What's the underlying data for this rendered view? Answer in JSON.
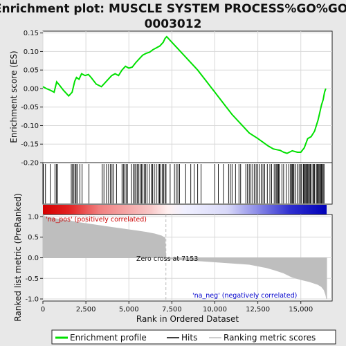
{
  "title_line1": "Enrichment plot: MUSCLE SYSTEM PROCESS%GO%GO:",
  "title_line2": "0003012",
  "colors": {
    "es_line": "#00e000",
    "hits": "#000000",
    "metric_fill": "#bebebe",
    "pos_text": "#cc0000",
    "neg_text": "#0000cc",
    "zero_line": "#bbbbbb"
  },
  "chart_data": [
    {
      "type": "line",
      "name": "enrichment-profile",
      "ylabel": "Enrichment score (ES)",
      "ylim": [
        -0.2,
        0.155
      ],
      "xlim": [
        0,
        16500
      ],
      "yticks": [
        -0.2,
        -0.15,
        -0.1,
        -0.05,
        0.0,
        0.05,
        0.1,
        0.15
      ],
      "ytick_labels": [
        "-0.20",
        "-0.15",
        "-0.10",
        "-0.05",
        "0.00",
        "0.05",
        "0.10",
        "0.15"
      ],
      "x": [
        0,
        200,
        450,
        650,
        800,
        950,
        1200,
        1500,
        1700,
        1850,
        1950,
        2100,
        2250,
        2450,
        2650,
        2800,
        3100,
        3400,
        3600,
        3800,
        4000,
        4200,
        4400,
        4600,
        4800,
        5000,
        5200,
        5400,
        5600,
        5800,
        6000,
        6200,
        6400,
        6600,
        6800,
        7000,
        7100,
        7200,
        7400,
        7600,
        7800,
        8000,
        8500,
        9000,
        9500,
        10000,
        10500,
        11000,
        11500,
        12000,
        12500,
        12800,
        13100,
        13400,
        13600,
        13800,
        14000,
        14200,
        14500,
        14800,
        15000,
        15200,
        15400,
        15600,
        15800,
        16000,
        16100,
        16200,
        16300,
        16380,
        16450
      ],
      "y": [
        0.005,
        0.0,
        -0.005,
        -0.01,
        0.018,
        0.01,
        -0.005,
        -0.02,
        -0.01,
        0.02,
        0.03,
        0.025,
        0.04,
        0.035,
        0.038,
        0.03,
        0.012,
        0.005,
        0.015,
        0.025,
        0.035,
        0.04,
        0.035,
        0.05,
        0.06,
        0.055,
        0.058,
        0.07,
        0.08,
        0.09,
        0.095,
        0.098,
        0.105,
        0.11,
        0.115,
        0.125,
        0.135,
        0.14,
        0.13,
        0.12,
        0.11,
        0.1,
        0.075,
        0.05,
        0.02,
        -0.01,
        -0.04,
        -0.07,
        -0.095,
        -0.12,
        -0.135,
        -0.145,
        -0.155,
        -0.163,
        -0.165,
        -0.167,
        -0.172,
        -0.175,
        -0.168,
        -0.172,
        -0.172,
        -0.16,
        -0.135,
        -0.13,
        -0.115,
        -0.085,
        -0.065,
        -0.045,
        -0.03,
        -0.01,
        0.0
      ]
    },
    {
      "type": "bar",
      "name": "ranked-list-metric",
      "ylabel": "Ranked list metric (PreRanked)",
      "xlabel": "Rank in Ordered Dataset",
      "ylim": [
        -1.05,
        1.05
      ],
      "xlim": [
        0,
        16500
      ],
      "xticks": [
        0,
        2500,
        5000,
        7500,
        10000,
        12500,
        15000
      ],
      "xtick_labels": [
        "0",
        "2,500",
        "5,000",
        "7,500",
        "10,000",
        "12,500",
        "15,000"
      ],
      "yticks": [
        -1.0,
        -0.5,
        0.0,
        0.5,
        1.0
      ],
      "ytick_labels": [
        "-1.0",
        "-0.5",
        "0.0",
        "0.5",
        "1.0"
      ],
      "x": [
        0,
        100,
        300,
        600,
        1000,
        1500,
        2000,
        2500,
        3000,
        3500,
        4000,
        4500,
        5000,
        5500,
        6000,
        6500,
        6900,
        7100,
        7150,
        7200,
        7600,
        8000,
        9000,
        10000,
        11000,
        12000,
        12500,
        13000,
        13500,
        14000,
        14500,
        15000,
        15500,
        16000,
        16200,
        16350,
        16450,
        16500
      ],
      "y": [
        1.05,
        1.0,
        0.98,
        0.96,
        0.93,
        0.9,
        0.86,
        0.83,
        0.8,
        0.77,
        0.74,
        0.71,
        0.68,
        0.65,
        0.62,
        0.58,
        0.53,
        0.48,
        0.0,
        -0.02,
        -0.03,
        -0.05,
        -0.07,
        -0.1,
        -0.13,
        -0.16,
        -0.2,
        -0.24,
        -0.3,
        -0.37,
        -0.47,
        -0.53,
        -0.58,
        -0.65,
        -0.7,
        -0.78,
        -0.9,
        -1.0
      ],
      "zero_cross_label": "Zero cross at 7153",
      "zero_cross": 7153,
      "pos_label": "'na_pos' (positively correlated)",
      "neg_label": "'na_neg' (negatively correlated)"
    }
  ],
  "hits": [
    30,
    150,
    420,
    700,
    780,
    860,
    1650,
    1720,
    1800,
    1880,
    1930,
    1990,
    2150,
    2280,
    2680,
    3450,
    3550,
    3700,
    3820,
    3930,
    4020,
    4120,
    4280,
    4600,
    4680,
    4760,
    4840,
    4920,
    5150,
    5250,
    5350,
    5420,
    5500,
    5580,
    5660,
    5740,
    5820,
    5900,
    5980,
    6060,
    6200,
    6300,
    6380,
    6480,
    6600,
    6700,
    6780,
    6860,
    6940,
    7020,
    7100,
    7160,
    7400,
    7650,
    7750,
    7850,
    7950,
    8300,
    8600,
    8800,
    9000,
    9200,
    10000,
    10200,
    10500,
    10800,
    10900,
    11000,
    11200,
    11400,
    11500,
    11800,
    11900,
    12000,
    12100,
    12200,
    12300,
    12400,
    12500,
    12600,
    12700,
    12800,
    12900,
    13050,
    13200,
    13300,
    13450,
    13550,
    13600,
    13650,
    13700,
    13750,
    13900,
    14000,
    14150,
    14300,
    14400,
    14450,
    14500,
    14550,
    14600,
    14700,
    14800,
    14900,
    15000,
    15050,
    15150,
    15200,
    15250,
    15300,
    15350,
    15400,
    15450,
    15500,
    15550,
    15600,
    15700,
    15750,
    15800,
    15900,
    15950,
    16000,
    16050,
    16100,
    16150,
    16200,
    16250,
    16300,
    16350
  ],
  "legend": {
    "items": [
      {
        "label": "Enrichment profile",
        "color": "#00e000"
      },
      {
        "label": "Hits",
        "color": "#000000"
      },
      {
        "label": "Ranking metric scores",
        "color": "#bebebe"
      }
    ]
  }
}
